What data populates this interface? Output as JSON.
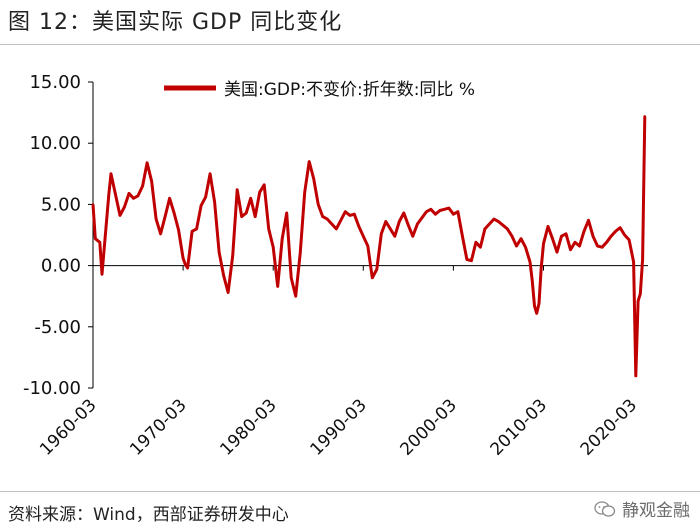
{
  "header": {
    "title": "图 12：美国实际 GDP 同比变化"
  },
  "footer": {
    "source": "资料来源：Wind，西部证券研发中心",
    "watermark": "静观金融"
  },
  "colors": {
    "series": "#c00000",
    "axis": "#000000"
  },
  "chart_data": {
    "type": "line",
    "title": "图 12：美国实际 GDP 同比变化",
    "xlabel": "",
    "ylabel": "",
    "ylim": [
      -10,
      15
    ],
    "yticks": [
      "15.00",
      "10.00",
      "5.00",
      "0.00",
      "-5.00",
      "-10.00"
    ],
    "xticks": [
      "1960-03",
      "1970-03",
      "1980-03",
      "1990-03",
      "2000-03",
      "2010-03",
      "2020-03"
    ],
    "legend_position": "top",
    "grid": false,
    "series": [
      {
        "name": "美国:GDP:不变价:折年数:同比 %",
        "points": [
          [
            "1960-03",
            5.0
          ],
          [
            "1960-06",
            2.2
          ],
          [
            "1960-12",
            1.9
          ],
          [
            "1961-03",
            -0.7
          ],
          [
            "1961-06",
            1.5
          ],
          [
            "1961-12",
            5.8
          ],
          [
            "1962-03",
            7.5
          ],
          [
            "1962-09",
            5.8
          ],
          [
            "1963-03",
            4.1
          ],
          [
            "1963-09",
            4.8
          ],
          [
            "1964-03",
            5.9
          ],
          [
            "1964-09",
            5.5
          ],
          [
            "1965-03",
            5.7
          ],
          [
            "1965-09",
            6.5
          ],
          [
            "1966-03",
            8.4
          ],
          [
            "1966-09",
            6.9
          ],
          [
            "1967-03",
            3.8
          ],
          [
            "1967-09",
            2.6
          ],
          [
            "1968-03",
            4.0
          ],
          [
            "1968-09",
            5.5
          ],
          [
            "1969-03",
            4.3
          ],
          [
            "1969-09",
            2.9
          ],
          [
            "1970-03",
            0.6
          ],
          [
            "1970-06",
            0.1
          ],
          [
            "1970-09",
            -0.2
          ],
          [
            "1971-03",
            2.8
          ],
          [
            "1971-09",
            3.0
          ],
          [
            "1972-03",
            4.9
          ],
          [
            "1972-09",
            5.6
          ],
          [
            "1973-03",
            7.5
          ],
          [
            "1973-09",
            5.2
          ],
          [
            "1974-03",
            1.1
          ],
          [
            "1974-09",
            -0.8
          ],
          [
            "1975-03",
            -2.2
          ],
          [
            "1975-09",
            0.8
          ],
          [
            "1976-03",
            6.2
          ],
          [
            "1976-09",
            4.0
          ],
          [
            "1977-03",
            4.3
          ],
          [
            "1977-09",
            5.5
          ],
          [
            "1978-03",
            4.0
          ],
          [
            "1978-09",
            6.0
          ],
          [
            "1979-03",
            6.6
          ],
          [
            "1979-09",
            3.0
          ],
          [
            "1980-03",
            1.5
          ],
          [
            "1980-09",
            -1.7
          ],
          [
            "1981-03",
            2.2
          ],
          [
            "1981-09",
            4.3
          ],
          [
            "1982-03",
            -1.0
          ],
          [
            "1982-09",
            -2.5
          ],
          [
            "1983-03",
            1.0
          ],
          [
            "1983-09",
            6.0
          ],
          [
            "1984-03",
            8.5
          ],
          [
            "1984-09",
            7.1
          ],
          [
            "1985-03",
            5.0
          ],
          [
            "1985-09",
            4.0
          ],
          [
            "1986-03",
            3.8
          ],
          [
            "1986-09",
            3.4
          ],
          [
            "1987-03",
            3.0
          ],
          [
            "1987-09",
            3.7
          ],
          [
            "1988-03",
            4.4
          ],
          [
            "1988-09",
            4.1
          ],
          [
            "1989-03",
            4.2
          ],
          [
            "1989-09",
            3.2
          ],
          [
            "1990-03",
            2.4
          ],
          [
            "1990-09",
            1.6
          ],
          [
            "1991-03",
            -1.0
          ],
          [
            "1991-09",
            -0.3
          ],
          [
            "1992-03",
            2.6
          ],
          [
            "1992-09",
            3.6
          ],
          [
            "1993-03",
            3.0
          ],
          [
            "1993-09",
            2.4
          ],
          [
            "1994-03",
            3.6
          ],
          [
            "1994-09",
            4.3
          ],
          [
            "1995-03",
            3.3
          ],
          [
            "1995-09",
            2.4
          ],
          [
            "1996-03",
            3.4
          ],
          [
            "1996-09",
            3.9
          ],
          [
            "1997-03",
            4.4
          ],
          [
            "1997-09",
            4.6
          ],
          [
            "1998-03",
            4.2
          ],
          [
            "1998-09",
            4.5
          ],
          [
            "1999-03",
            4.6
          ],
          [
            "1999-09",
            4.7
          ],
          [
            "2000-03",
            4.2
          ],
          [
            "2000-09",
            4.4
          ],
          [
            "2001-03",
            2.4
          ],
          [
            "2001-09",
            0.5
          ],
          [
            "2002-03",
            0.4
          ],
          [
            "2002-09",
            1.9
          ],
          [
            "2003-03",
            1.5
          ],
          [
            "2003-09",
            3.0
          ],
          [
            "2004-03",
            3.4
          ],
          [
            "2004-09",
            3.8
          ],
          [
            "2005-03",
            3.6
          ],
          [
            "2005-09",
            3.3
          ],
          [
            "2006-03",
            3.0
          ],
          [
            "2006-09",
            2.4
          ],
          [
            "2007-03",
            1.6
          ],
          [
            "2007-09",
            2.2
          ],
          [
            "2008-03",
            1.5
          ],
          [
            "2008-09",
            0.3
          ],
          [
            "2008-12",
            -1.2
          ],
          [
            "2009-03",
            -3.3
          ],
          [
            "2009-06",
            -3.9
          ],
          [
            "2009-09",
            -3.1
          ],
          [
            "2009-12",
            -0.2
          ],
          [
            "2010-03",
            1.8
          ],
          [
            "2010-09",
            3.2
          ],
          [
            "2011-03",
            2.2
          ],
          [
            "2011-09",
            1.1
          ],
          [
            "2012-03",
            2.4
          ],
          [
            "2012-09",
            2.6
          ],
          [
            "2013-03",
            1.3
          ],
          [
            "2013-09",
            1.9
          ],
          [
            "2014-03",
            1.6
          ],
          [
            "2014-09",
            2.8
          ],
          [
            "2015-03",
            3.7
          ],
          [
            "2015-09",
            2.4
          ],
          [
            "2016-03",
            1.6
          ],
          [
            "2016-09",
            1.5
          ],
          [
            "2017-03",
            1.9
          ],
          [
            "2017-09",
            2.4
          ],
          [
            "2018-03",
            2.8
          ],
          [
            "2018-09",
            3.1
          ],
          [
            "2019-03",
            2.5
          ],
          [
            "2019-09",
            2.1
          ],
          [
            "2020-03",
            0.3
          ],
          [
            "2020-06",
            -9.0
          ],
          [
            "2020-09",
            -2.9
          ],
          [
            "2020-12",
            -2.3
          ],
          [
            "2021-03",
            0.5
          ],
          [
            "2021-06",
            12.2
          ]
        ]
      }
    ]
  }
}
